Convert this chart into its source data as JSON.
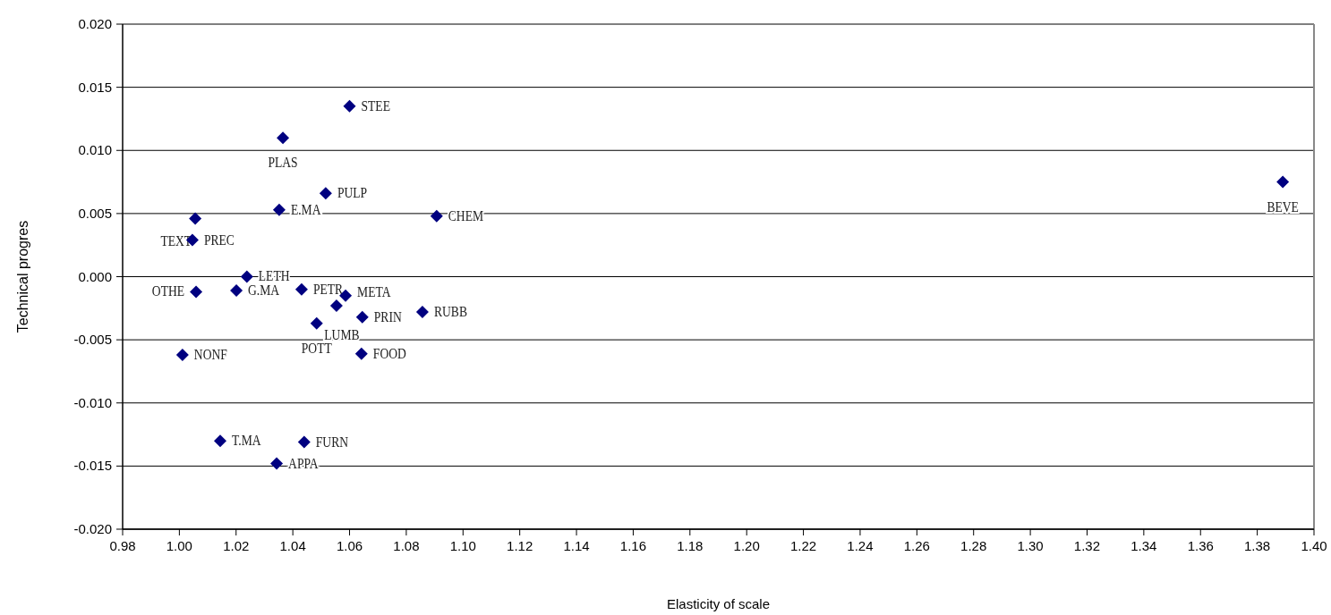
{
  "chart_data": {
    "type": "scatter",
    "xlabel": "Elasticity of scale",
    "ylabel": "Technical progres",
    "marker": "diamond",
    "grid": "y",
    "legend": false,
    "xlim": [
      0.98,
      1.4
    ],
    "ylim": [
      -0.02,
      0.02
    ],
    "xticks": [
      {
        "value": 0.98,
        "label": "0.98"
      },
      {
        "value": 1.0,
        "label": "1.00"
      },
      {
        "value": 1.02,
        "label": "1.02"
      },
      {
        "value": 1.04,
        "label": "1.04"
      },
      {
        "value": 1.06,
        "label": "1.06"
      },
      {
        "value": 1.08,
        "label": "1.08"
      },
      {
        "value": 1.1,
        "label": "1.10"
      },
      {
        "value": 1.12,
        "label": "1.12"
      },
      {
        "value": 1.14,
        "label": "1.14"
      },
      {
        "value": 1.16,
        "label": "1.16"
      },
      {
        "value": 1.18,
        "label": "1.18"
      },
      {
        "value": 1.2,
        "label": "1.20"
      },
      {
        "value": 1.22,
        "label": "1.22"
      },
      {
        "value": 1.24,
        "label": "1.24"
      },
      {
        "value": 1.26,
        "label": "1.26"
      },
      {
        "value": 1.28,
        "label": "1.28"
      },
      {
        "value": 1.3,
        "label": "1.30"
      },
      {
        "value": 1.32,
        "label": "1.32"
      },
      {
        "value": 1.34,
        "label": "1.34"
      },
      {
        "value": 1.36,
        "label": "1.36"
      },
      {
        "value": 1.38,
        "label": "1.38"
      },
      {
        "value": 1.4,
        "label": "1.40"
      }
    ],
    "yticks": [
      {
        "value": -0.02,
        "label": "-0.020"
      },
      {
        "value": -0.015,
        "label": "-0.015"
      },
      {
        "value": -0.01,
        "label": "-0.010"
      },
      {
        "value": -0.005,
        "label": "-0.005"
      },
      {
        "value": 0,
        "label": "0.000"
      },
      {
        "value": 0.005,
        "label": "0.005"
      },
      {
        "value": 0.01,
        "label": "0.010"
      },
      {
        "value": 0.015,
        "label": "0.015"
      },
      {
        "value": 0.02,
        "label": "0.020"
      }
    ],
    "series": [
      {
        "color": "#000080",
        "x": [
          1.06,
          1.0365,
          1.0516,
          1.0352,
          1.0907,
          1.0056,
          1.0046,
          1.389,
          1.0238,
          1.0059,
          1.0201,
          1.0431,
          1.0586,
          1.0554,
          1.0645,
          1.0484,
          1.0857,
          1.0011,
          1.0642,
          1.0144,
          1.044,
          1.0343
        ],
        "values": [
          0.0135,
          0.011,
          0.0066,
          0.0053,
          0.0048,
          0.0046,
          0.0029,
          0.0075,
          0.0,
          -0.0012,
          -0.0011,
          -0.001,
          -0.0015,
          -0.0023,
          -0.0032,
          -0.0037,
          -0.0028,
          -0.0062,
          -0.0061,
          -0.013,
          -0.0131,
          -0.0148
        ]
      }
    ],
    "annotations": [
      {
        "text": "STEE",
        "x": 1.06,
        "y": 0.0135
      },
      {
        "text": "PLAS",
        "x": 1.0365,
        "y": 0.011
      },
      {
        "text": "PULP",
        "x": 1.0516,
        "y": 0.0066
      },
      {
        "text": "E.MA",
        "x": 1.0352,
        "y": 0.0053
      },
      {
        "text": "CHEM",
        "x": 1.0907,
        "y": 0.0048
      },
      {
        "text": "TEXT",
        "x": 1.0056,
        "y": 0.0046
      },
      {
        "text": "PREC",
        "x": 1.0046,
        "y": 0.0029
      },
      {
        "text": "BEVE",
        "x": 1.389,
        "y": 0.0075
      },
      {
        "text": "LETH",
        "x": 1.0238,
        "y": 0.0
      },
      {
        "text": "OTHE",
        "x": 1.0059,
        "y": -0.0012
      },
      {
        "text": "G.MA",
        "x": 1.0201,
        "y": -0.0011
      },
      {
        "text": "PETR",
        "x": 1.0431,
        "y": -0.001
      },
      {
        "text": "META",
        "x": 1.0586,
        "y": -0.0015
      },
      {
        "text": "LUMB",
        "x": 1.0554,
        "y": -0.0023
      },
      {
        "text": "PRIN",
        "x": 1.0645,
        "y": -0.0032
      },
      {
        "text": "POTT",
        "x": 1.0484,
        "y": -0.0037
      },
      {
        "text": "RUBB",
        "x": 1.0857,
        "y": -0.0028
      },
      {
        "text": "NONF",
        "x": 1.0011,
        "y": -0.0062
      },
      {
        "text": "FOOD",
        "x": 1.0642,
        "y": -0.0061
      },
      {
        "text": "T.MA",
        "x": 1.0144,
        "y": -0.013
      },
      {
        "text": "FURN",
        "x": 1.044,
        "y": -0.0131
      },
      {
        "text": "APPA",
        "x": 1.0343,
        "y": -0.0148
      }
    ]
  }
}
